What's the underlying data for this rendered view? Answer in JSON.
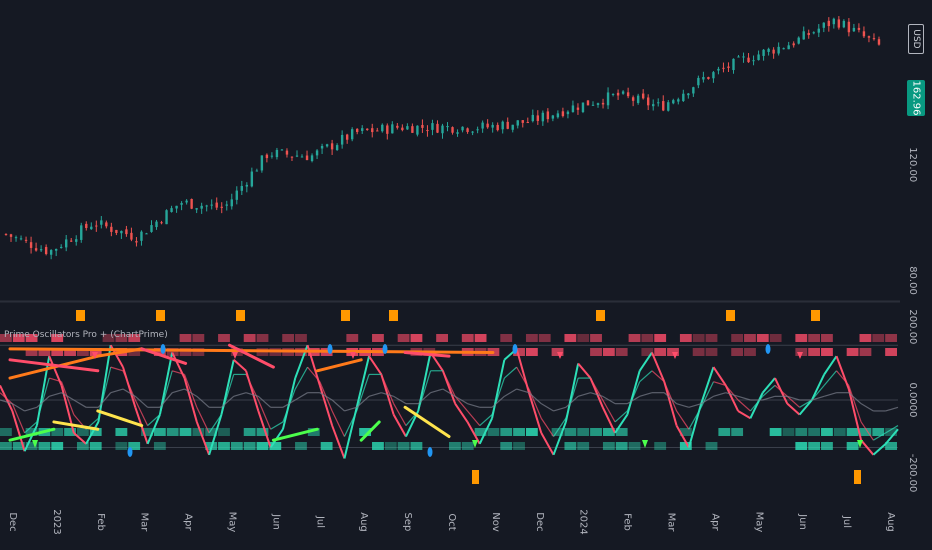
{
  "price_axis": {
    "currency": "USD",
    "last_price": "162.96"
  },
  "indicator": {
    "title": "Prime Oscillators Pro + (ChartPrime)"
  },
  "colors": {
    "background": "#151923",
    "up_candle": "#26a69a",
    "down_candle": "#ef5350",
    "bull_line": "#2de0b8",
    "bear_line": "#ff4d6a",
    "trend_orange": "#ff7a1a",
    "trend_yellow": "#ffe44d",
    "trend_green": "#4cff4c",
    "marker_blue": "#2196f3",
    "marker_orange": "#ff9800",
    "price_badge": "#089981"
  },
  "chart_data": [
    {
      "type": "candlestick",
      "title": "",
      "x_labels": [
        "Dec",
        "2023",
        "Feb",
        "Mar",
        "Apr",
        "May",
        "Jun",
        "Jul",
        "Aug",
        "Sep",
        "Oct",
        "Nov",
        "Dec",
        "2024",
        "Feb",
        "Mar",
        "Apr",
        "May",
        "Jun",
        "Jul",
        "Aug"
      ],
      "y_ticks": [
        80,
        120
      ],
      "y_tick_labels": [
        "80.00",
        "120.00"
      ],
      "ylim": [
        75,
        170
      ],
      "close_anchors": [
        {
          "x": "Dec",
          "y": 96
        },
        {
          "x": "2023",
          "y": 90
        },
        {
          "x": "Feb",
          "y": 100
        },
        {
          "x": "Mar",
          "y": 95
        },
        {
          "x": "Apr",
          "y": 107
        },
        {
          "x": "May",
          "y": 105
        },
        {
          "x": "Jun",
          "y": 124
        },
        {
          "x": "Jul",
          "y": 123
        },
        {
          "x": "Aug",
          "y": 131
        },
        {
          "x": "Sep",
          "y": 133
        },
        {
          "x": "Oct",
          "y": 133
        },
        {
          "x": "Nov",
          "y": 133
        },
        {
          "x": "Dec",
          "y": 135
        },
        {
          "x": "2024",
          "y": 140
        },
        {
          "x": "Feb",
          "y": 144
        },
        {
          "x": "Mar",
          "y": 140
        },
        {
          "x": "Apr",
          "y": 150
        },
        {
          "x": "May",
          "y": 157
        },
        {
          "x": "Jun",
          "y": 162
        },
        {
          "x": "Jul",
          "y": 170
        },
        {
          "x": "Aug",
          "y": 161
        }
      ],
      "last": 162.96
    },
    {
      "type": "line",
      "title": "",
      "y_ticks": [
        200,
        0,
        -200
      ],
      "y_tick_labels": [
        "200.00",
        "0.0000",
        "-200.00"
      ],
      "ylim": [
        -260,
        260
      ],
      "series": [
        {
          "values": [
            40,
            -30,
            -140,
            -70,
            120,
            40,
            -90,
            -120,
            -60,
            150,
            90,
            -20,
            -120,
            -40,
            130,
            60,
            -60,
            -150,
            -40,
            110,
            80,
            -30,
            -130,
            -80,
            60,
            150,
            40,
            -70,
            -160,
            -20,
            120,
            70,
            -40,
            -100,
            -30,
            130,
            80,
            -10,
            -60,
            -120,
            -50,
            110,
            140,
            20,
            -90,
            -150,
            -60,
            100,
            60,
            -20,
            -90,
            -40,
            80,
            130,
            50,
            -70,
            -130,
            -10,
            90,
            40,
            -30,
            -50,
            20,
            60,
            -10,
            -40,
            0,
            70,
            120,
            30,
            -110,
            -150,
            -120,
            -80
          ]
        },
        {
          "values": [
            20,
            -10,
            -90,
            -60,
            60,
            50,
            -40,
            -80,
            -50,
            90,
            80,
            0,
            -70,
            -40,
            80,
            70,
            -20,
            -90,
            -40,
            70,
            70,
            0,
            -80,
            -60,
            30,
            90,
            50,
            -30,
            -100,
            -30,
            70,
            70,
            -10,
            -70,
            -30,
            80,
            80,
            10,
            -30,
            -70,
            -40,
            60,
            90,
            30,
            -50,
            -100,
            -50,
            60,
            60,
            0,
            -60,
            -30,
            50,
            80,
            50,
            -30,
            -80,
            -20,
            50,
            40,
            0,
            -30,
            10,
            40,
            10,
            -20,
            0,
            40,
            80,
            40,
            -60,
            -110,
            -90,
            -70
          ]
        },
        {
          "values": [
            0,
            -10,
            -30,
            -20,
            10,
            20,
            0,
            -20,
            -20,
            20,
            30,
            10,
            -20,
            -20,
            20,
            30,
            10,
            -20,
            -20,
            10,
            20,
            10,
            -20,
            -20,
            0,
            20,
            20,
            0,
            -30,
            -20,
            10,
            20,
            10,
            -10,
            -10,
            20,
            30,
            10,
            -10,
            -20,
            -20,
            10,
            30,
            20,
            -10,
            -30,
            -20,
            10,
            20,
            10,
            -10,
            -10,
            10,
            20,
            20,
            -10,
            -20,
            -10,
            10,
            20,
            10,
            0,
            0,
            10,
            10,
            0,
            0,
            10,
            20,
            20,
            -10,
            -30,
            -30,
            -20
          ]
        }
      ],
      "trend_lines": [
        {
          "color": "orange",
          "from": [
            "Dec",
            60
          ],
          "to": [
            "Feb",
            120
          ]
        },
        {
          "color": "orange",
          "from": [
            "Feb",
            120
          ],
          "to": [
            "Mar",
            140
          ]
        },
        {
          "color": "orange",
          "from": [
            "Jul",
            80
          ],
          "to": [
            "Aug",
            110
          ]
        },
        {
          "color": "orange",
          "from": [
            "Nov",
            130
          ],
          "to": [
            "Dec",
            140
          ]
        },
        {
          "color": "yellow",
          "from": [
            "2023",
            -60
          ],
          "to": [
            "Feb",
            -80
          ]
        },
        {
          "color": "yellow",
          "from": [
            "Sep",
            -20
          ],
          "to": [
            "Oct",
            -100
          ]
        },
        {
          "color": "yellow",
          "from": [
            "Feb",
            -30
          ],
          "to": [
            "Mar",
            -70
          ]
        },
        {
          "color": "red",
          "from": [
            "Mar",
            140
          ],
          "to": [
            "Apr",
            100
          ]
        },
        {
          "color": "red",
          "from": [
            "May",
            150
          ],
          "to": [
            "Jun",
            90
          ]
        },
        {
          "color": "red",
          "from": [
            "Sep",
            130
          ],
          "to": [
            "Oct",
            120
          ]
        },
        {
          "color": "red",
          "from": [
            "Jan",
            110
          ],
          "to": [
            "Feb",
            80
          ]
        },
        {
          "color": "green",
          "from": [
            "Dec",
            -110
          ],
          "to": [
            "2023",
            -80
          ]
        },
        {
          "color": "green",
          "from": [
            "Jun",
            -110
          ],
          "to": [
            "Jul",
            -80
          ]
        },
        {
          "color": "green",
          "from": [
            "Aug",
            -110
          ],
          "to": [
            "Aug",
            -60
          ]
        }
      ]
    }
  ]
}
